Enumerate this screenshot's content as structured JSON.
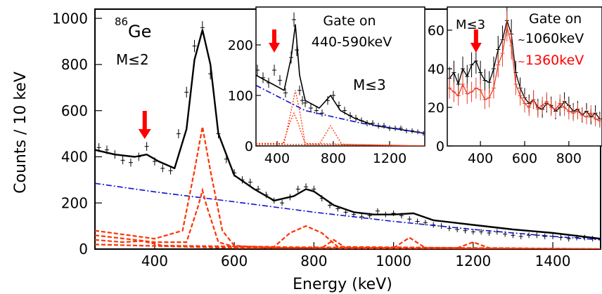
{
  "chart_data": [
    {
      "id": "main",
      "type": "line",
      "xlabel": "Energy (keV)",
      "ylabel": "Counts / 10 keV",
      "xlim": [
        250,
        1520
      ],
      "ylim": [
        0,
        1040
      ],
      "xticks": [
        400,
        600,
        800,
        1000,
        1200,
        1400
      ],
      "yticks": [
        0,
        200,
        400,
        600,
        800,
        1000
      ],
      "x_tick_labels": [
        "400",
        "600",
        "800",
        "1000",
        "1200",
        "1400"
      ],
      "y_tick_labels": [
        "0",
        "200",
        "400",
        "600",
        "800",
        "1000"
      ],
      "annotations": {
        "isotope_mass": "86",
        "isotope_symbol": "Ge",
        "multiplicity": "M≤2"
      },
      "arrow_energy": 375,
      "series": [
        {
          "kind": "data",
          "color": "#000000",
          "x": [
            260,
            280,
            300,
            320,
            340,
            360,
            380,
            400,
            420,
            440,
            460,
            480,
            500,
            520,
            540,
            560,
            580,
            600,
            620,
            640,
            660,
            680,
            700,
            720,
            740,
            760,
            780,
            800,
            820,
            840,
            860,
            880,
            900,
            920,
            940,
            960,
            980,
            1000,
            1020,
            1040,
            1060,
            1080,
            1100,
            1120,
            1140,
            1160,
            1180,
            1200,
            1220,
            1240,
            1260,
            1280,
            1300,
            1320,
            1340,
            1360,
            1380,
            1400,
            1420,
            1440,
            1460,
            1480,
            1500
          ],
          "y": [
            440,
            430,
            410,
            385,
            375,
            400,
            445,
            380,
            350,
            340,
            500,
            680,
            880,
            960,
            760,
            500,
            390,
            330,
            300,
            290,
            260,
            235,
            210,
            200,
            225,
            260,
            270,
            260,
            220,
            190,
            175,
            160,
            150,
            140,
            145,
            165,
            150,
            155,
            145,
            130,
            120,
            115,
            105,
            100,
            90,
            85,
            80,
            75,
            75,
            70,
            75,
            65,
            60,
            55,
            60,
            60,
            55,
            55,
            50,
            45,
            50,
            50,
            45
          ]
        },
        {
          "kind": "fit-total",
          "color": "#000000",
          "x": [
            250,
            300,
            350,
            380,
            410,
            450,
            480,
            500,
            520,
            540,
            560,
            600,
            650,
            700,
            750,
            780,
            800,
            850,
            900,
            950,
            1000,
            1050,
            1100,
            1200,
            1300,
            1400,
            1520
          ],
          "y": [
            430,
            410,
            400,
            410,
            380,
            350,
            520,
            820,
            950,
            800,
            500,
            320,
            260,
            210,
            230,
            260,
            250,
            190,
            160,
            150,
            150,
            155,
            125,
            105,
            85,
            70,
            45
          ]
        },
        {
          "kind": "background",
          "color": "#1010d0",
          "x": [
            250,
            400,
            600,
            800,
            1000,
            1200,
            1400,
            1520
          ],
          "y": [
            285,
            248,
            205,
            160,
            120,
            85,
            55,
            40
          ]
        },
        {
          "kind": "component",
          "color": "#ff3300",
          "x": [
            250,
            400,
            470,
            500,
            520,
            540,
            570,
            600,
            700,
            1520
          ],
          "y": [
            80,
            45,
            80,
            340,
            530,
            340,
            80,
            15,
            5,
            0
          ]
        },
        {
          "kind": "component",
          "color": "#ff3300",
          "x": [
            250,
            400,
            480,
            510,
            520,
            530,
            560,
            600,
            1520
          ],
          "y": [
            60,
            30,
            30,
            190,
            255,
            190,
            30,
            10,
            0
          ]
        },
        {
          "kind": "component",
          "color": "#ff3300",
          "x": [
            250,
            320,
            370,
            420,
            700,
            740,
            780,
            820,
            860,
            1520
          ],
          "y": [
            40,
            30,
            35,
            15,
            10,
            70,
            100,
            70,
            10,
            0
          ]
        },
        {
          "kind": "component",
          "color": "#ff3300",
          "x": [
            250,
            600,
            820,
            850,
            880,
            1000,
            1040,
            1080,
            1160,
            1200,
            1240,
            1520
          ],
          "y": [
            20,
            5,
            5,
            40,
            5,
            5,
            50,
            5,
            5,
            30,
            5,
            0
          ]
        }
      ]
    },
    {
      "id": "inset1",
      "type": "line",
      "xlim": [
        250,
        1450
      ],
      "ylim": [
        0,
        275
      ],
      "xticks": [
        400,
        800,
        1200
      ],
      "yticks": [
        0,
        100,
        200
      ],
      "x_tick_labels": [
        "400",
        "800",
        "1200"
      ],
      "y_tick_labels": [
        "0",
        "100",
        "200"
      ],
      "annotations": {
        "gate_title": "Gate on",
        "gate_range": "440-590keV",
        "multiplicity": "M≤3"
      },
      "arrow_energy": 380,
      "series": [
        {
          "kind": "data",
          "color": "#000000",
          "x": [
            260,
            300,
            340,
            380,
            420,
            460,
            500,
            520,
            540,
            560,
            580,
            600,
            640,
            680,
            720,
            760,
            800,
            840,
            880,
            920,
            960,
            1000,
            1040,
            1080,
            1120,
            1160,
            1200,
            1240,
            1280,
            1320,
            1360,
            1400,
            1440
          ],
          "y": [
            150,
            135,
            125,
            150,
            130,
            105,
            175,
            250,
            190,
            110,
            90,
            85,
            75,
            70,
            65,
            90,
            100,
            80,
            70,
            60,
            55,
            50,
            45,
            45,
            40,
            40,
            35,
            35,
            35,
            30,
            30,
            28,
            25
          ]
        },
        {
          "kind": "fit-total",
          "color": "#000000",
          "x": [
            250,
            350,
            450,
            500,
            530,
            560,
            600,
            700,
            780,
            850,
            950,
            1100,
            1450
          ],
          "y": [
            140,
            125,
            110,
            175,
            240,
            140,
            90,
            75,
            100,
            70,
            55,
            40,
            25
          ]
        },
        {
          "kind": "background",
          "color": "#1010d0",
          "x": [
            250,
            600,
            1000,
            1450
          ],
          "y": [
            120,
            70,
            45,
            25
          ]
        },
        {
          "kind": "component",
          "color": "#ff3300",
          "x": [
            250,
            450,
            500,
            530,
            560,
            600,
            1450
          ],
          "y": [
            5,
            5,
            70,
            110,
            70,
            5,
            0
          ]
        },
        {
          "kind": "component",
          "color": "#ff3300",
          "x": [
            250,
            440,
            490,
            520,
            550,
            600,
            1450
          ],
          "y": [
            3,
            3,
            45,
            65,
            45,
            3,
            0
          ]
        },
        {
          "kind": "component",
          "color": "#ff3300",
          "x": [
            250,
            700,
            780,
            860,
            1450
          ],
          "y": [
            3,
            3,
            40,
            3,
            0
          ]
        }
      ]
    },
    {
      "id": "inset2",
      "type": "line",
      "xlim": [
        250,
        950
      ],
      "ylim": [
        0,
        72
      ],
      "xticks": [
        400,
        600,
        800
      ],
      "yticks": [
        0,
        20,
        40,
        60
      ],
      "x_tick_labels": [
        "400",
        "600",
        "800"
      ],
      "y_tick_labels": [
        "0",
        "20",
        "40",
        "60"
      ],
      "annotations": {
        "gate_title": "Gate on",
        "gate_black": "1060keV",
        "gate_red": "1360keV",
        "multiplicity": "M≤3",
        "black_color": "#000000",
        "red_color": "#ff0000"
      },
      "arrow_energy": 380,
      "series": [
        {
          "name": "1060keV",
          "kind": "data",
          "color": "#000000",
          "x": [
            260,
            280,
            300,
            320,
            340,
            360,
            380,
            400,
            420,
            440,
            460,
            480,
            500,
            520,
            540,
            560,
            580,
            600,
            620,
            640,
            660,
            680,
            700,
            720,
            740,
            760,
            780,
            800,
            820,
            840,
            860,
            880,
            900,
            920,
            940
          ],
          "y": [
            35,
            38,
            32,
            40,
            36,
            42,
            44,
            38,
            34,
            33,
            40,
            50,
            55,
            65,
            58,
            38,
            30,
            25,
            22,
            24,
            20,
            19,
            22,
            21,
            18,
            20,
            23,
            21,
            18,
            19,
            16,
            18,
            15,
            17,
            14
          ]
        },
        {
          "name": "1360keV",
          "kind": "data",
          "color": "#e8402a",
          "x": [
            260,
            280,
            300,
            320,
            340,
            360,
            380,
            400,
            420,
            440,
            460,
            480,
            500,
            520,
            540,
            560,
            580,
            600,
            620,
            640,
            660,
            680,
            700,
            720,
            740,
            760,
            780,
            800,
            820,
            840,
            860,
            880,
            900,
            920,
            940
          ],
          "y": [
            30,
            28,
            26,
            32,
            27,
            28,
            30,
            29,
            24,
            25,
            30,
            42,
            48,
            62,
            52,
            32,
            26,
            22,
            20,
            24,
            19,
            21,
            23,
            20,
            19,
            22,
            20,
            18,
            17,
            18,
            16,
            15,
            17,
            14,
            13
          ]
        }
      ]
    }
  ]
}
